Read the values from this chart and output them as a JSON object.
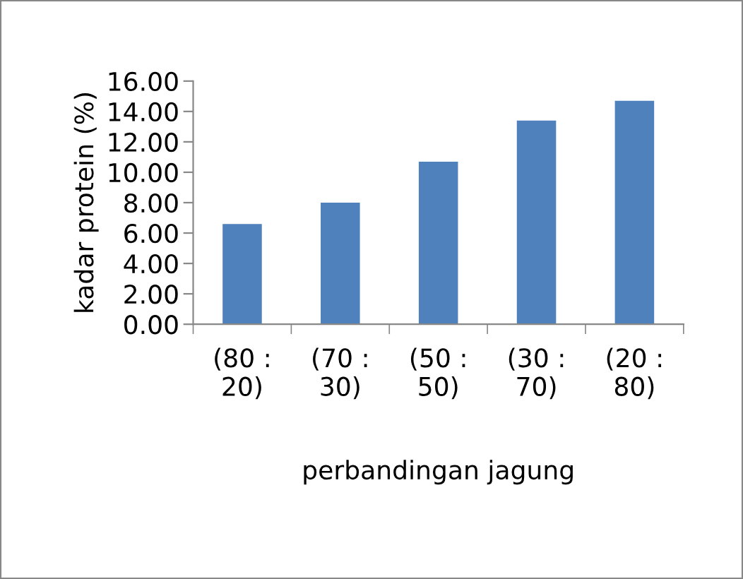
{
  "chart_data": {
    "type": "bar",
    "categories": [
      "(80 : 20)",
      "(70 : 30)",
      "(50 : 50)",
      "(30 : 70)",
      "(20 : 80)"
    ],
    "values": [
      6.6,
      8.0,
      10.7,
      13.4,
      14.7
    ],
    "color": "#4f81bd",
    "ylim": [
      0,
      16
    ],
    "yticks": [
      {
        "value": 0,
        "label": "0.00"
      },
      {
        "value": 2,
        "label": "2.00"
      },
      {
        "value": 4,
        "label": "4.00"
      },
      {
        "value": 6,
        "label": "6.00"
      },
      {
        "value": 8,
        "label": "8.00"
      },
      {
        "value": 10,
        "label": "10.00"
      },
      {
        "value": 12,
        "label": "12.00"
      },
      {
        "value": 14,
        "label": "14.00"
      },
      {
        "value": 16,
        "label": "16.00"
      }
    ],
    "ylabel": "kadar protein (%)",
    "xlabel": "perbandingan jagung",
    "grid": false
  }
}
